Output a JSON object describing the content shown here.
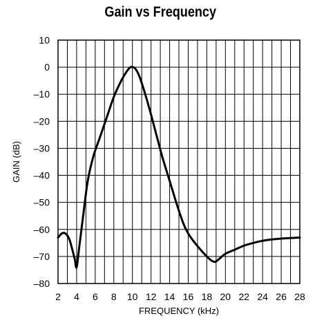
{
  "chart_data": {
    "type": "line",
    "title": "Gain vs Frequency",
    "xlabel": "FREQUENCY (kHz)",
    "ylabel": "GAIN (dB)",
    "xlim": [
      2,
      28
    ],
    "ylim": [
      -80,
      10
    ],
    "xticks": [
      2,
      4,
      6,
      8,
      10,
      12,
      14,
      16,
      18,
      20,
      22,
      24,
      26,
      28
    ],
    "yticks": [
      10,
      0,
      -10,
      -20,
      -30,
      -40,
      -50,
      -60,
      -70,
      -80
    ],
    "ytick_labels": [
      "10",
      "0",
      "–10",
      "–20",
      "–30",
      "–40",
      "–50",
      "–60",
      "–70",
      "–80"
    ],
    "grid": true,
    "series": [
      {
        "x": [
          2,
          2.4,
          2.8,
          3.2,
          3.5,
          3.8,
          4.0,
          4.3,
          4.7,
          5.2,
          5.8,
          6.5,
          7.2,
          8.0,
          8.8,
          9.4,
          9.8,
          10.0,
          10.3,
          10.7,
          11.2,
          11.8,
          12.5,
          13.2,
          14.0,
          14.8,
          15.5,
          16.0,
          16.5,
          17.2,
          18.0,
          18.5,
          18.9,
          19.3,
          20.0,
          21.0,
          22.0,
          23.0,
          24.0,
          25.0,
          26.0,
          27.0,
          28.0
        ],
        "y": [
          -63,
          -61.5,
          -61.5,
          -63.5,
          -67,
          -71,
          -74,
          -66,
          -55,
          -42,
          -33,
          -26,
          -19,
          -11,
          -5,
          -1.5,
          0,
          0,
          -0.5,
          -3,
          -8,
          -15,
          -24,
          -33,
          -42,
          -51,
          -58,
          -61.5,
          -64,
          -67,
          -70,
          -71.5,
          -72,
          -71,
          -69,
          -67.5,
          -66,
          -65,
          -64.2,
          -63.7,
          -63.4,
          -63.2,
          -63
        ]
      }
    ]
  }
}
